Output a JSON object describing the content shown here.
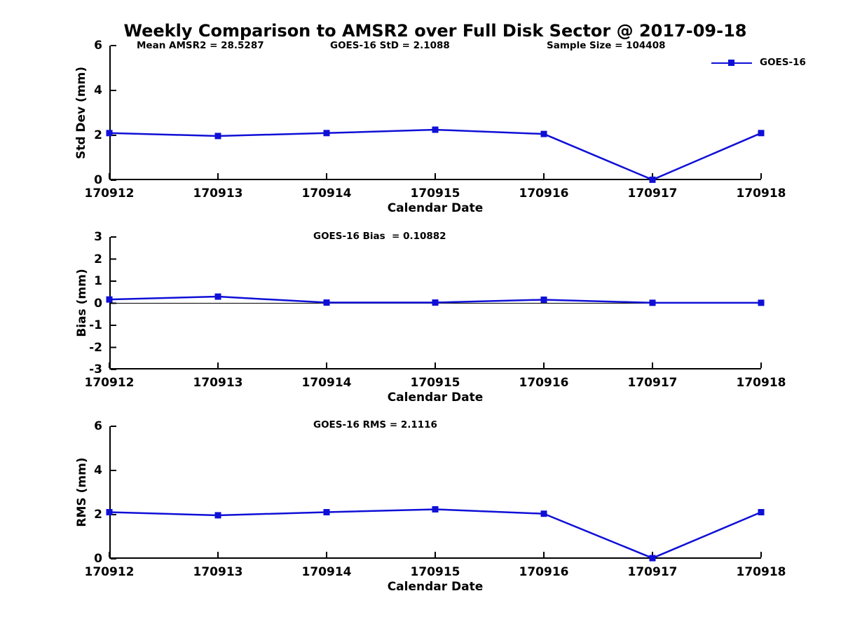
{
  "title": "Weekly Comparison to AMSR2 over Full Disk Sector @ 2017-09-18",
  "legend": {
    "label": "GOES-16",
    "position": "top-right"
  },
  "colors": {
    "series": "#0f0fd7",
    "axis": "#000000",
    "background": "#ffffff"
  },
  "chart_data": [
    {
      "type": "line",
      "series_name": "GOES-16",
      "title": "",
      "annotations": [
        "Mean AMSR2 = 28.5287",
        "GOES-16 StD = 2.1088",
        "Sample Size = 104408"
      ],
      "xlabel": "Calendar Date",
      "ylabel": "Std Dev (mm)",
      "categories": [
        "170912",
        "170913",
        "170914",
        "170915",
        "170916",
        "170917",
        "170918"
      ],
      "values": [
        2.1,
        1.97,
        2.1,
        2.25,
        2.06,
        0.02,
        2.1
      ],
      "ylim": [
        0,
        6
      ],
      "yticks": [
        0,
        2,
        4,
        6
      ],
      "grid": false,
      "zero_line": false
    },
    {
      "type": "line",
      "series_name": "GOES-16",
      "annotation": "GOES-16 Bias  = 0.10882",
      "xlabel": "Calendar Date",
      "ylabel": "Bias (mm)",
      "categories": [
        "170912",
        "170913",
        "170914",
        "170915",
        "170916",
        "170917",
        "170918"
      ],
      "values": [
        0.17,
        0.3,
        0.03,
        0.03,
        0.16,
        0.02,
        0.02
      ],
      "ylim": [
        -3,
        3
      ],
      "yticks": [
        -3,
        -2,
        -1,
        0,
        1,
        2,
        3
      ],
      "grid": false,
      "zero_line": true
    },
    {
      "type": "line",
      "series_name": "GOES-16",
      "annotation": "GOES-16 RMS = 2.1116",
      "xlabel": "Calendar Date",
      "ylabel": "RMS (mm)",
      "categories": [
        "170912",
        "170913",
        "170914",
        "170915",
        "170916",
        "170917",
        "170918"
      ],
      "values": [
        2.11,
        1.97,
        2.11,
        2.24,
        2.04,
        0.03,
        2.11
      ],
      "ylim": [
        0,
        6
      ],
      "yticks": [
        0,
        2,
        4,
        6
      ],
      "grid": false,
      "zero_line": false
    }
  ]
}
